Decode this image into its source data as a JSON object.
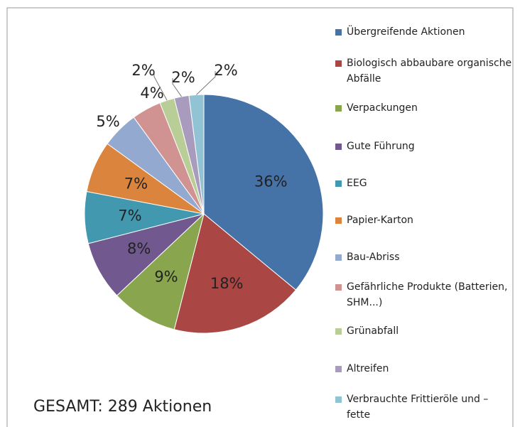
{
  "chart_data": {
    "type": "pie",
    "annotation": "GESAMT: 289 Aktionen",
    "categories": [
      "Übergreifende Aktionen",
      "Biologisch abbaubare organische Abfälle",
      "Verpackungen",
      "Gute Führung",
      "EEG",
      "Papier-Karton",
      "Bau-Abriss",
      "Gefährliche Produkte (Batterien, SHM...)",
      "Grünabfall",
      "Altreifen",
      "Verbrauchte Frittieröle und – fette"
    ],
    "values": [
      36,
      18,
      9,
      8,
      7,
      7,
      5,
      4,
      2,
      2,
      2
    ],
    "value_labels": [
      "36%",
      "18%",
      "9%",
      "8%",
      "7%",
      "7%",
      "5%",
      "4%",
      "2%",
      "2%",
      "2%"
    ],
    "colors": [
      "#4572a7",
      "#aa4643",
      "#89a54e",
      "#71588f",
      "#4198af",
      "#db843d",
      "#93a9cf",
      "#d19392",
      "#b9cd96",
      "#a99bbd",
      "#92c3d4"
    ],
    "legend": "right"
  }
}
